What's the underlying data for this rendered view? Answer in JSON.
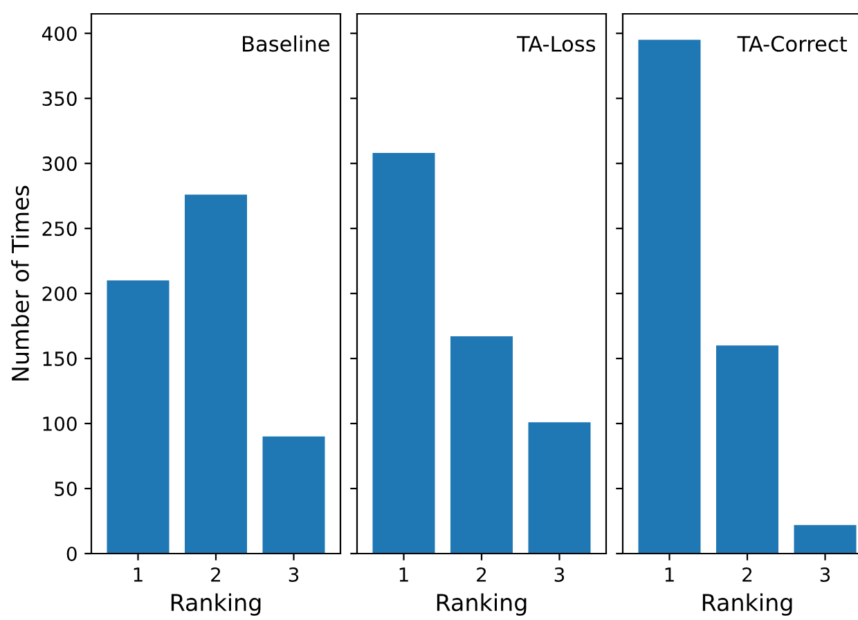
{
  "chart_data": [
    {
      "type": "bar",
      "title": "Baseline",
      "xlabel": "Ranking",
      "ylabel": "Number of Times",
      "categories": [
        "1",
        "2",
        "3"
      ],
      "values": [
        210,
        276,
        90
      ],
      "color": "#1f77b4",
      "ylim": [
        0,
        415
      ],
      "yticks": [
        0,
        50,
        100,
        150,
        200,
        250,
        300,
        350,
        400
      ],
      "grid": false
    },
    {
      "type": "bar",
      "title": "TA-Loss",
      "xlabel": "Ranking",
      "categories": [
        "1",
        "2",
        "3"
      ],
      "values": [
        308,
        167,
        101
      ],
      "color": "#1f77b4",
      "ylim": [
        0,
        415
      ],
      "yticks": [
        0,
        50,
        100,
        150,
        200,
        250,
        300,
        350,
        400
      ],
      "grid": false,
      "tick_labels": "x"
    },
    {
      "type": "bar",
      "title": "TA-Correct",
      "xlabel": "Ranking",
      "categories": [
        "1",
        "2",
        "3"
      ],
      "values": [
        395,
        160,
        22
      ],
      "color": "#1f77b4",
      "ylim": [
        0,
        415
      ],
      "yticks": [
        0,
        50,
        100,
        150,
        200,
        250,
        300,
        350,
        400
      ],
      "grid": false,
      "tick_labels": "x"
    }
  ]
}
